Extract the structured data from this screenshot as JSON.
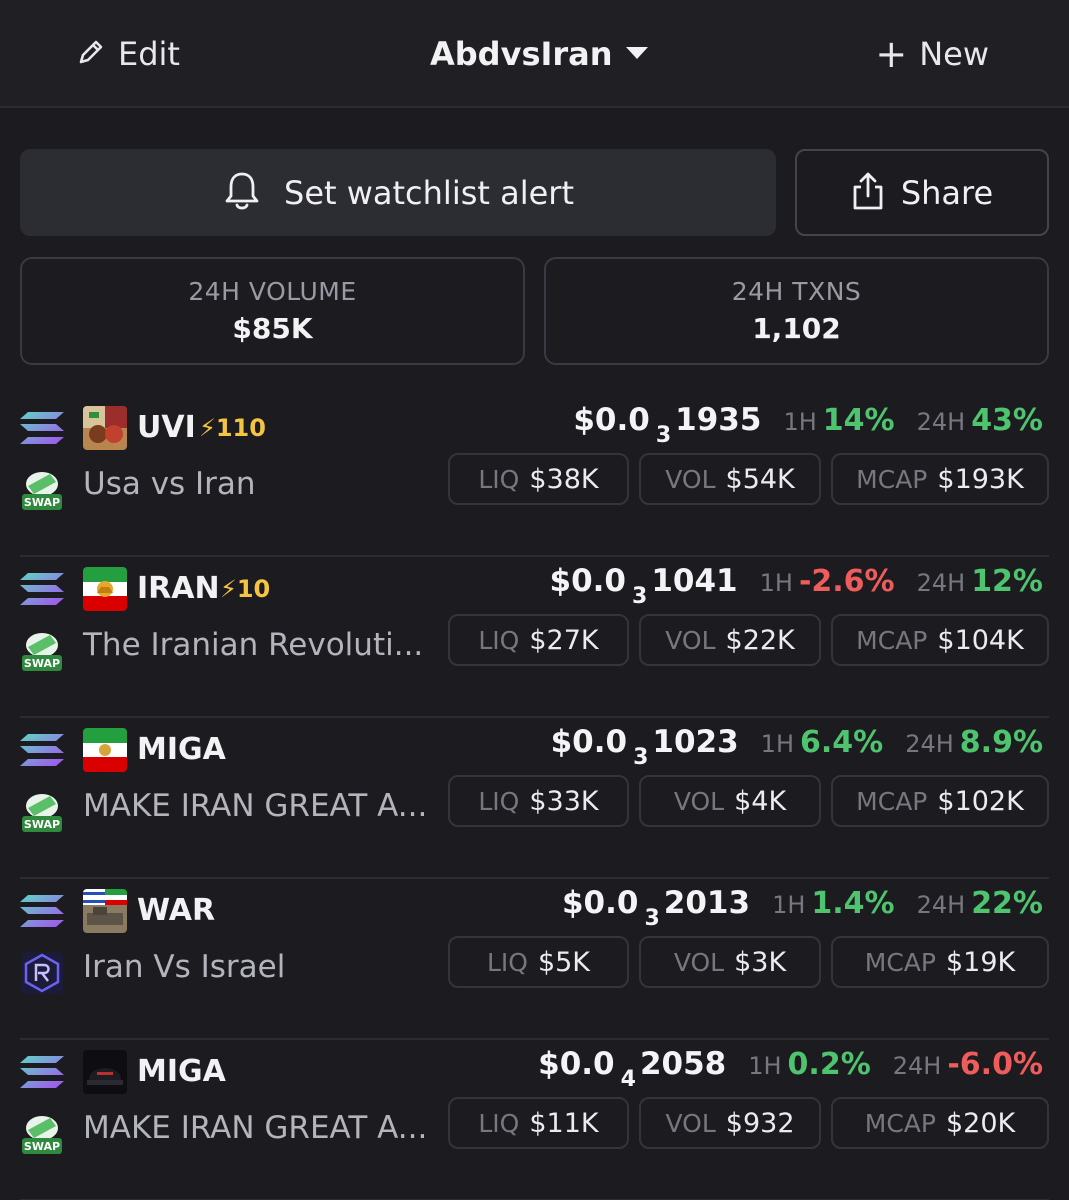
{
  "header": {
    "edit_label": "Edit",
    "title": "AbdvsIran",
    "new_label": "New"
  },
  "actions": {
    "alert_label": "Set watchlist alert",
    "share_label": "Share"
  },
  "stats": [
    {
      "label": "24H VOLUME",
      "value": "$85K"
    },
    {
      "label": "24H TXNS",
      "value": "1,102"
    }
  ],
  "tokens": [
    {
      "symbol": "UVI",
      "boost": "⚡110",
      "name": "Usa vs Iran",
      "dex": "swap",
      "price_pre": "$0.0",
      "price_zeros": "3",
      "price_digits": "1935",
      "h1": "14%",
      "h1_dir": "pos",
      "h24": "43%",
      "h24_dir": "pos",
      "liq": "$38K",
      "vol": "$54K",
      "mcap": "$193K"
    },
    {
      "symbol": "IRAN",
      "boost": "⚡10",
      "name": "The Iranian Revoluti...",
      "dex": "swap",
      "price_pre": "$0.0",
      "price_zeros": "3",
      "price_digits": "1041",
      "h1": "-2.6%",
      "h1_dir": "neg",
      "h24": "12%",
      "h24_dir": "pos",
      "liq": "$27K",
      "vol": "$22K",
      "mcap": "$104K"
    },
    {
      "symbol": "MIGA",
      "boost": "",
      "name": "MAKE IRAN GREAT A...",
      "dex": "swap",
      "price_pre": "$0.0",
      "price_zeros": "3",
      "price_digits": "1023",
      "h1": "6.4%",
      "h1_dir": "pos",
      "h24": "8.9%",
      "h24_dir": "pos",
      "liq": "$33K",
      "vol": "$4K",
      "mcap": "$102K"
    },
    {
      "symbol": "WAR",
      "boost": "",
      "name": "Iran Vs Israel",
      "dex": "raydium",
      "price_pre": "$0.0",
      "price_zeros": "3",
      "price_digits": "2013",
      "h1": "1.4%",
      "h1_dir": "pos",
      "h24": "22%",
      "h24_dir": "pos",
      "liq": "$5K",
      "vol": "$3K",
      "mcap": "$19K"
    },
    {
      "symbol": "MIGA",
      "boost": "",
      "name": "MAKE IRAN GREAT A...",
      "dex": "swap",
      "price_pre": "$0.0",
      "price_zeros": "4",
      "price_digits": "2058",
      "h1": "0.2%",
      "h1_dir": "pos",
      "h24": "-6.0%",
      "h24_dir": "neg",
      "liq": "$11K",
      "vol": "$932",
      "mcap": "$20K"
    }
  ],
  "labels": {
    "h1": "1H",
    "h24": "24H",
    "liq": "LIQ",
    "vol": "VOL",
    "mcap": "MCAP",
    "swap_badge": "SWAP"
  },
  "colors": {
    "positive": "#4fc46f",
    "negative": "#ef5c5c",
    "boost": "#f5c542",
    "background": "#1b1b20"
  }
}
